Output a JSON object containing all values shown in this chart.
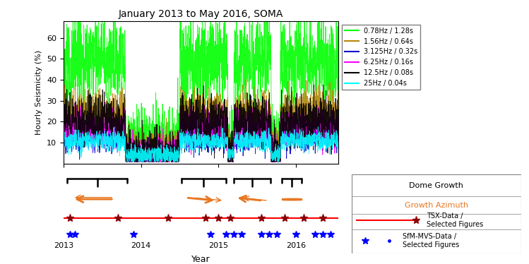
{
  "title": "January 2013 to May 2016, SOMA",
  "xlabel": "Year",
  "ylabel": "Hourly Seismicity (%)",
  "ylim_main": [
    0,
    68
  ],
  "yticks_main": [
    10,
    20,
    30,
    40,
    50,
    60
  ],
  "xmin": 2013.0,
  "xmax": 2016.55,
  "xticks": [
    2013,
    2014,
    2015,
    2016
  ],
  "series": [
    {
      "label": "0.78Hz / 1.28s",
      "color": "#00ff00",
      "base": 5,
      "amplitude": 55,
      "noise": 8
    },
    {
      "label": "1.56Hz / 0.64s",
      "color": "#b8860b",
      "base": 5,
      "amplitude": 25,
      "noise": 4
    },
    {
      "label": "3.125Hz / 0.32s",
      "color": "#0000cd",
      "base": 3,
      "amplitude": 12,
      "noise": 3
    },
    {
      "label": "6.25Hz / 0.16s",
      "color": "#ff00ff",
      "base": 3,
      "amplitude": 18,
      "noise": 4
    },
    {
      "label": "12.5Hz / 0.08s",
      "color": "#000000",
      "base": 3,
      "amplitude": 22,
      "noise": 5
    },
    {
      "label": "25Hz / 0.04s",
      "color": "#00ffff",
      "base": 3,
      "amplitude": 10,
      "noise": 2
    }
  ],
  "bracket_color": "black",
  "arrow_color": "#e87722",
  "tsx_color": "red",
  "sfm_color": "blue",
  "tsx_times": [
    2013.08,
    2013.7,
    2014.35,
    2014.83,
    2015.0,
    2015.15,
    2015.55,
    2015.85,
    2016.1,
    2016.35
  ],
  "sfm_times": [
    2013.08,
    2013.15,
    2013.9,
    2014.9,
    2015.1,
    2015.2,
    2015.3,
    2015.55,
    2015.65,
    2015.75,
    2016.0,
    2016.25,
    2016.35,
    2016.45
  ],
  "dome_growth_label": "Dome Growth",
  "growth_azimuth_label": "Growth Azimuth",
  "tsx_label": "TSX-Data /\nSelected Figures",
  "sfm_label": "SfM-MVS-Data /\nSelected Figures"
}
